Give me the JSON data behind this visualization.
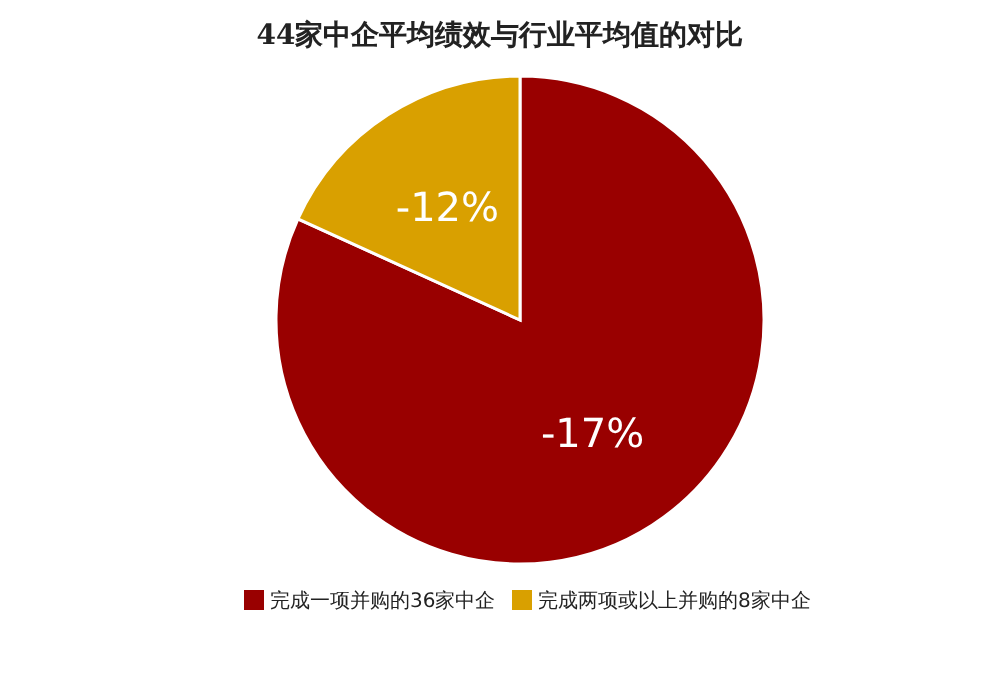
{
  "chart_data": {
    "type": "pie",
    "title": "44家中企平均绩效与行业平均值的对比",
    "categories": [
      "完成一项并购的36家中企",
      "完成两项或以上并购的8家中企"
    ],
    "values": [
      81.8,
      18.2
    ],
    "annotations": [
      "-17%",
      "-12%"
    ],
    "colors": [
      "#990000",
      "#d9a000"
    ],
    "legend": "bottom"
  }
}
